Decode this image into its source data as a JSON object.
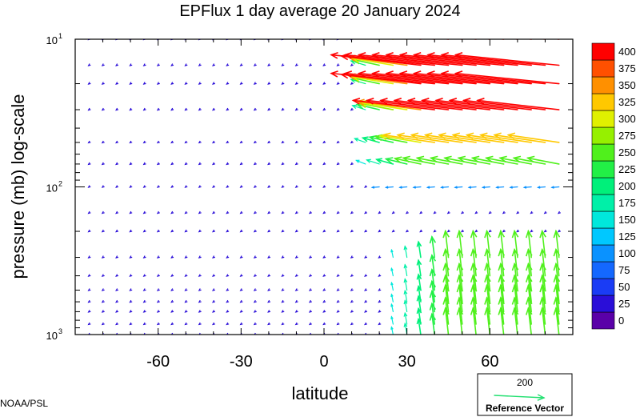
{
  "chart_data": {
    "type": "vector-field",
    "title": "EPFlux  1 day average  20 January   2024",
    "xlabel": "latitude",
    "ylabel": "pressure (mb)  log-scale",
    "xlim": [
      -90,
      90
    ],
    "ylim": [
      1000,
      10
    ],
    "y_scale": "log",
    "x_ticks": [
      -60,
      -30,
      0,
      30,
      60
    ],
    "y_ticks": [
      {
        "value": 10,
        "base": "10",
        "exp": "1"
      },
      {
        "value": 100,
        "base": "10",
        "exp": "2"
      },
      {
        "value": 1000,
        "base": "10",
        "exp": "3"
      }
    ],
    "colorbar": {
      "levels": [
        0,
        25,
        50,
        75,
        100,
        125,
        150,
        175,
        200,
        225,
        250,
        275,
        300,
        325,
        350,
        375,
        400
      ],
      "colors": [
        "#5a00a8",
        "#2a0ed8",
        "#1a3cf5",
        "#1468ff",
        "#0a92ff",
        "#00c8ff",
        "#00e8dc",
        "#00f0a8",
        "#00f07a",
        "#22f046",
        "#50f01c",
        "#96f000",
        "#e0f000",
        "#ffc800",
        "#ff9000",
        "#ff5000",
        "#ff0000"
      ]
    },
    "reference_vector": {
      "value": "200",
      "label": "Reference Vector",
      "color": "#22e070"
    },
    "source": "NOAA/PSL",
    "grid": false,
    "legend": "bottom-right"
  }
}
